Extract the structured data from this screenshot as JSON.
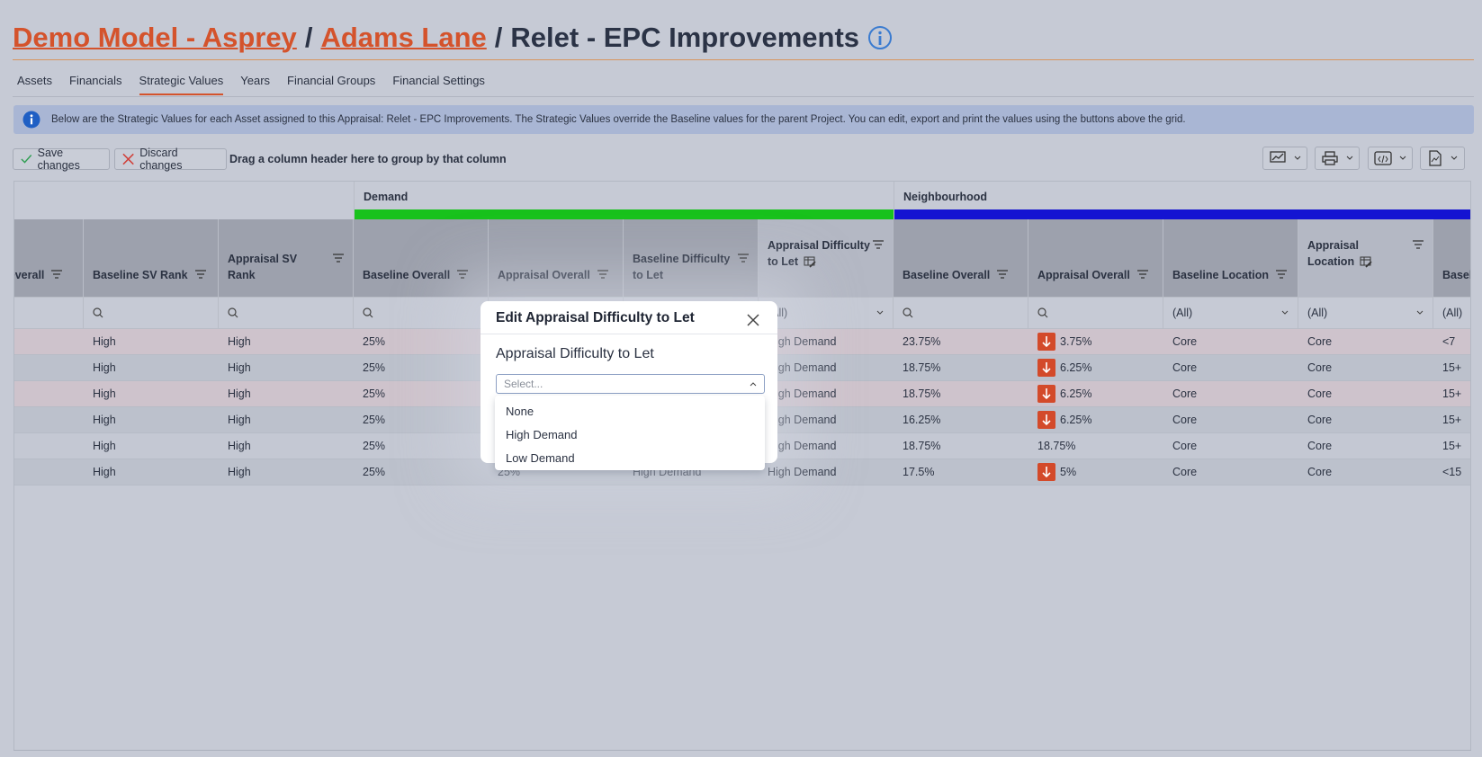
{
  "header": {
    "breadcrumb": [
      "Demo Model - Asprey",
      "Adams Lane",
      "Relet - EPC Improvements"
    ],
    "separator": "/"
  },
  "tabs": {
    "items": [
      "Assets",
      "Financials",
      "Strategic Values",
      "Years",
      "Financial Groups",
      "Financial Settings"
    ],
    "active": 2
  },
  "info": "Below are the Strategic Values for each Asset assigned to this Appraisal: Relet - EPC Improvements. The Strategic Values override the Baseline values for the parent Project. You can edit, export and print the values using the buttons above the grid.",
  "toolbar": {
    "save": "Save changes",
    "discard": "Discard changes",
    "group_hint": "Drag a column header here to group by that column"
  },
  "grid": {
    "groups": [
      {
        "label": "Demand",
        "color": "#18c21c"
      },
      {
        "label": "Neighbourhood",
        "color": "#1414d2"
      }
    ],
    "filter_all": "(All)",
    "columns": [
      {
        "label": "Overall",
        "group": null,
        "filter": null,
        "editable": false
      },
      {
        "label": "Baseline SV Rank",
        "group": null,
        "filter": "search",
        "editable": false
      },
      {
        "label": "Appraisal SV Rank",
        "group": null,
        "filter": "search",
        "editable": false
      },
      {
        "label": "Baseline Overall",
        "group": 0,
        "filter": "search",
        "editable": false
      },
      {
        "label": "Appraisal Overall",
        "group": 0,
        "filter": "search",
        "editable": false
      },
      {
        "label": "Baseline Difficulty to Let",
        "group": 0,
        "filter": "search",
        "editable": false
      },
      {
        "label": "Appraisal Difficulty to Let",
        "group": 0,
        "filter": "select",
        "editable": true
      },
      {
        "label": "Baseline Overall",
        "group": 1,
        "filter": "search",
        "editable": false
      },
      {
        "label": "Appraisal Overall",
        "group": 1,
        "filter": "search",
        "editable": false
      },
      {
        "label": "Baseline Location",
        "group": 1,
        "filter": "select",
        "editable": false
      },
      {
        "label": "Appraisal Location",
        "group": 1,
        "filter": "select",
        "editable": true
      },
      {
        "label": "Baseline Repairs",
        "group": 1,
        "filter": "select",
        "editable": false
      }
    ],
    "rows": [
      {
        "highlight": true,
        "down": true,
        "cells": [
          null,
          "High",
          "High",
          "25%",
          null,
          null,
          "High Demand",
          "23.75%",
          "3.75%",
          "Core",
          "Core",
          "<7"
        ]
      },
      {
        "highlight": false,
        "down": true,
        "cells": [
          null,
          "High",
          "High",
          "25%",
          null,
          null,
          "High Demand",
          "18.75%",
          "6.25%",
          "Core",
          "Core",
          "15+"
        ]
      },
      {
        "highlight": true,
        "down": true,
        "cells": [
          null,
          "High",
          "High",
          "25%",
          null,
          null,
          "High Demand",
          "18.75%",
          "6.25%",
          "Core",
          "Core",
          "15+"
        ]
      },
      {
        "highlight": false,
        "down": true,
        "cells": [
          null,
          "High",
          "High",
          "25%",
          null,
          null,
          "High Demand",
          "16.25%",
          "6.25%",
          "Core",
          "Core",
          "15+"
        ]
      },
      {
        "highlight": false,
        "down": false,
        "cells": [
          null,
          "High",
          "High",
          "25%",
          null,
          null,
          "High Demand",
          "18.75%",
          "18.75%",
          "Core",
          "Core",
          "15+"
        ]
      },
      {
        "highlight": false,
        "down": true,
        "cells": [
          null,
          "High",
          "High",
          "25%",
          "25%",
          "High Demand",
          "High Demand",
          "17.5%",
          "5%",
          "Core",
          "Core",
          "<15"
        ]
      }
    ]
  },
  "modal": {
    "title": "Edit Appraisal Difficulty to Let",
    "field_label": "Appraisal Difficulty to Let",
    "placeholder": "Select...",
    "options": [
      "None",
      "High Demand",
      "Low Demand"
    ]
  }
}
